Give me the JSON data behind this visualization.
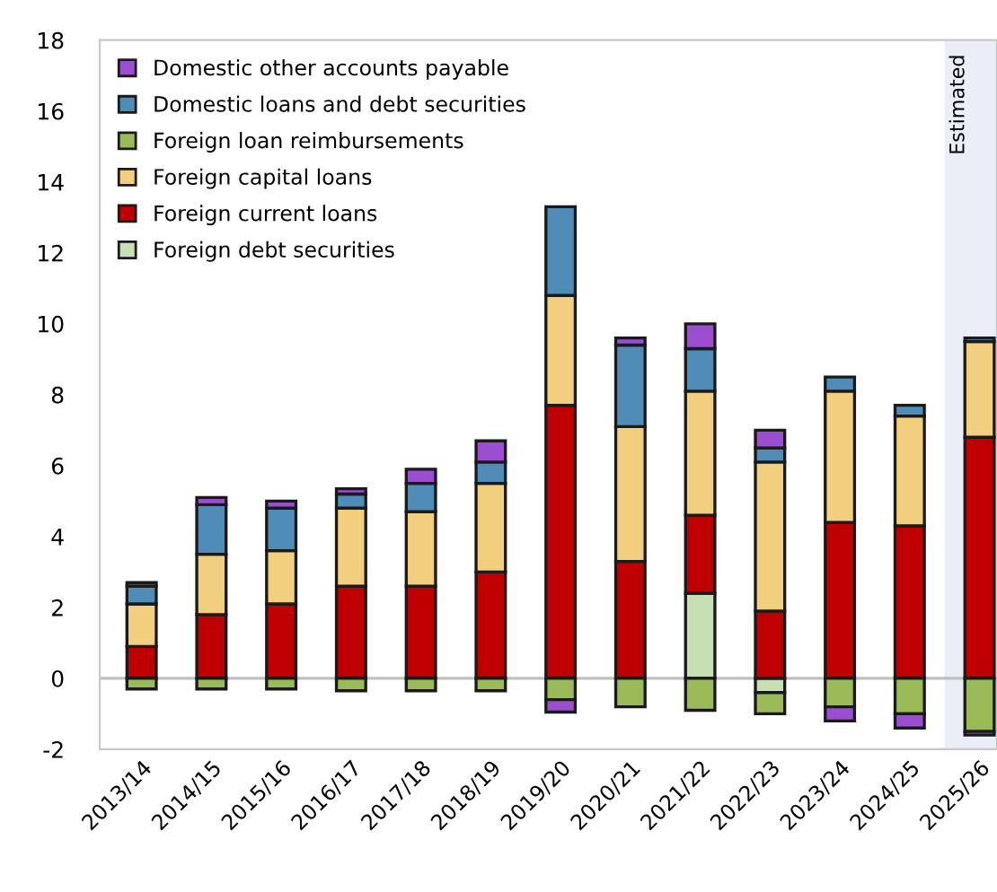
{
  "chart_data": {
    "type": "bar",
    "stacked": true,
    "categories": [
      "2013/14",
      "2014/15",
      "2015/16",
      "2016/17",
      "2017/18",
      "2018/19",
      "2019/20",
      "2020/21",
      "2021/22",
      "2022/23",
      "2023/24",
      "2024/25",
      "2025/26"
    ],
    "series": [
      {
        "name": "Foreign debt securities",
        "color": "#c6e0b4",
        "values": [
          0,
          0,
          0,
          0,
          0,
          0,
          0,
          0,
          2.4,
          -0.4,
          0,
          0,
          0
        ]
      },
      {
        "name": "Foreign current loans",
        "color": "#c00000",
        "values": [
          0.9,
          1.8,
          2.1,
          2.6,
          2.6,
          3.0,
          7.7,
          3.3,
          2.2,
          1.9,
          4.4,
          4.3,
          6.8
        ]
      },
      {
        "name": "Foreign capital loans",
        "color": "#f2cf7e",
        "values": [
          1.2,
          1.7,
          1.5,
          2.2,
          2.1,
          2.5,
          3.1,
          3.8,
          3.5,
          4.2,
          3.7,
          3.1,
          2.7
        ]
      },
      {
        "name": "Foreign loan reimbursements",
        "color": "#9bbb59",
        "values": [
          -0.3,
          -0.3,
          -0.3,
          -0.35,
          -0.35,
          -0.35,
          -0.6,
          -0.8,
          -0.9,
          -0.6,
          -0.8,
          -1.0,
          -1.5
        ]
      },
      {
        "name": "Domestic loans and debt securities",
        "color": "#4f8cb8",
        "values": [
          0.5,
          1.4,
          1.2,
          0.4,
          0.8,
          0.6,
          2.5,
          2.3,
          1.2,
          0.4,
          0.4,
          0.3,
          0.1
        ]
      },
      {
        "name": "Domestic other accounts payable",
        "color": "#9b4fd0",
        "values": [
          0.1,
          0.2,
          0.2,
          0.15,
          0.4,
          0.6,
          -0.35,
          0.2,
          0.7,
          0.5,
          -0.4,
          -0.4,
          -0.1
        ]
      }
    ],
    "ylim": [
      -2,
      18
    ],
    "yticks": [
      -2,
      0,
      2,
      4,
      6,
      8,
      10,
      12,
      14,
      16,
      18
    ],
    "bands": [
      {
        "axis": "x",
        "from": "2025/26",
        "to": "2025/26",
        "label": "Estimated",
        "color": "#e9eef7"
      }
    ],
    "ref_lines": [
      {
        "axis": "y",
        "value": 0,
        "color": "#bfbfbf"
      }
    ],
    "legend": "top left",
    "grid": false
  }
}
